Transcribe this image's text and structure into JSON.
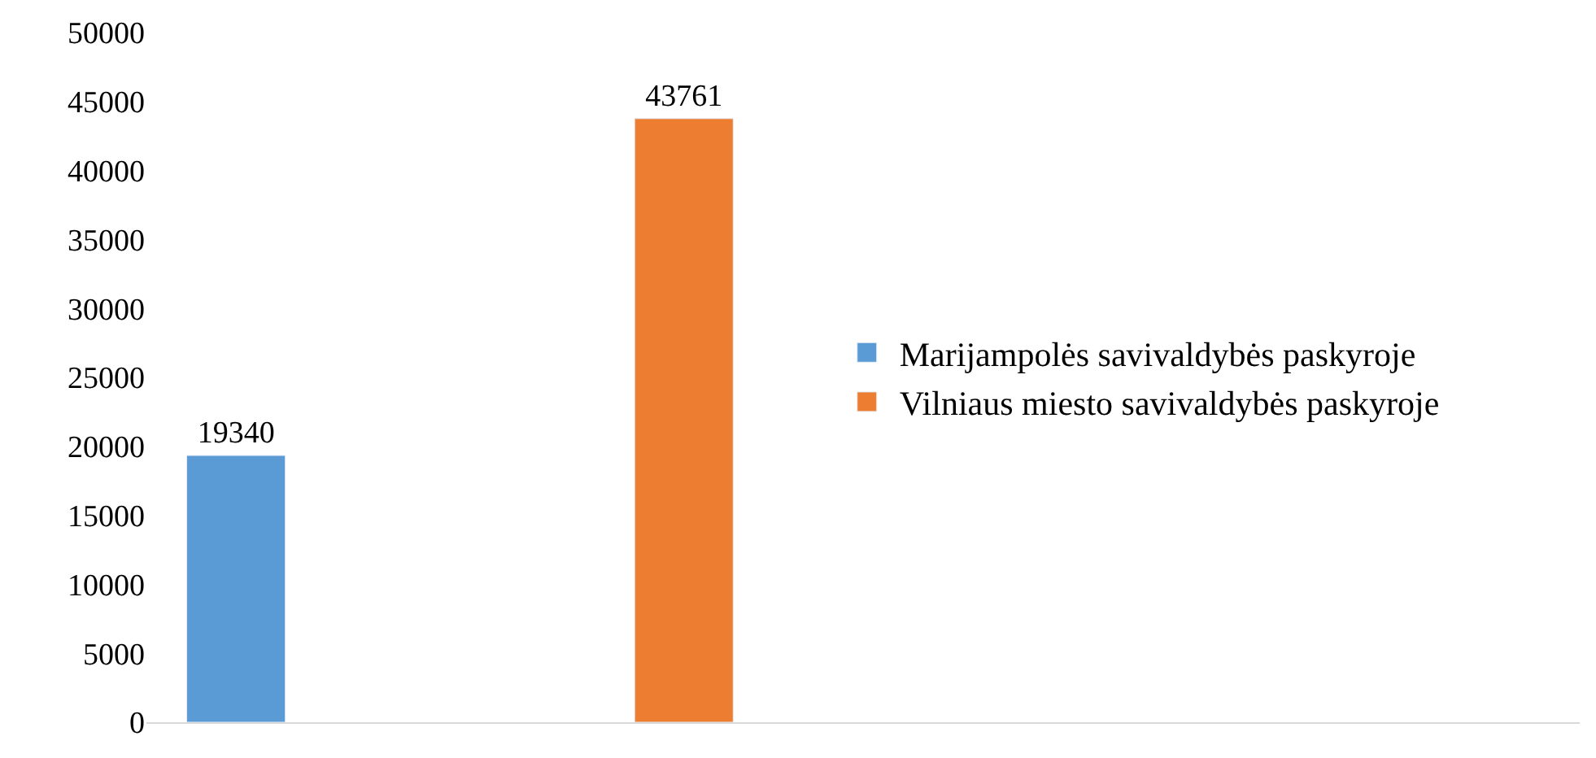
{
  "chart_data": {
    "type": "bar",
    "categories": [
      null
    ],
    "series": [
      {
        "name": "Marijampolės savivaldybės paskyroje",
        "color": "#5b9bd5",
        "values": [
          19340
        ]
      },
      {
        "name": "Vilniaus miesto savivaldybės paskyroje",
        "color": "#ed7d31",
        "values": [
          43761
        ]
      }
    ],
    "ylim": [
      0,
      50000
    ],
    "yticks": [
      0,
      5000,
      10000,
      15000,
      20000,
      25000,
      30000,
      35000,
      40000,
      45000,
      50000
    ],
    "data_labels": true,
    "legend": "right"
  }
}
